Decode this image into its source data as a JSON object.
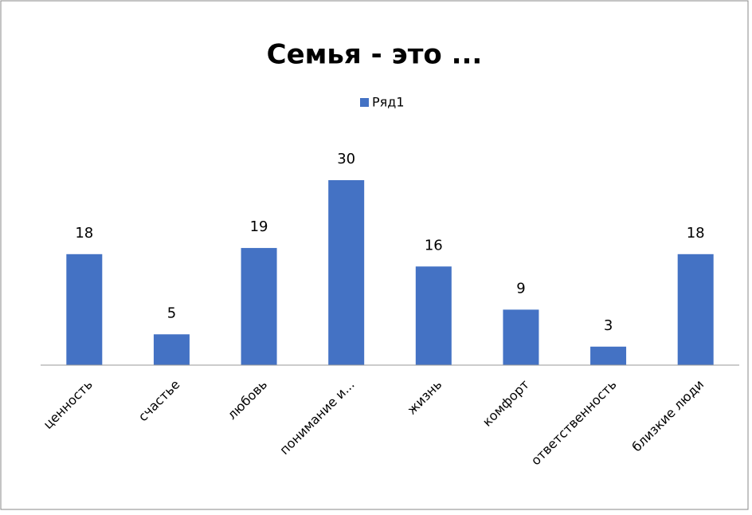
{
  "chart_data": {
    "type": "bar",
    "title": "Семья - это ...",
    "categories": [
      "ценность",
      "счастье",
      "любовь",
      "понимание и...",
      "жизнь",
      "комфорт",
      "ответственность",
      "близкие люди"
    ],
    "series": [
      {
        "name": "Ряд1",
        "color": "#4472c4",
        "values": [
          18,
          5,
          19,
          30,
          16,
          9,
          3,
          18
        ]
      }
    ],
    "legend": "top"
  }
}
